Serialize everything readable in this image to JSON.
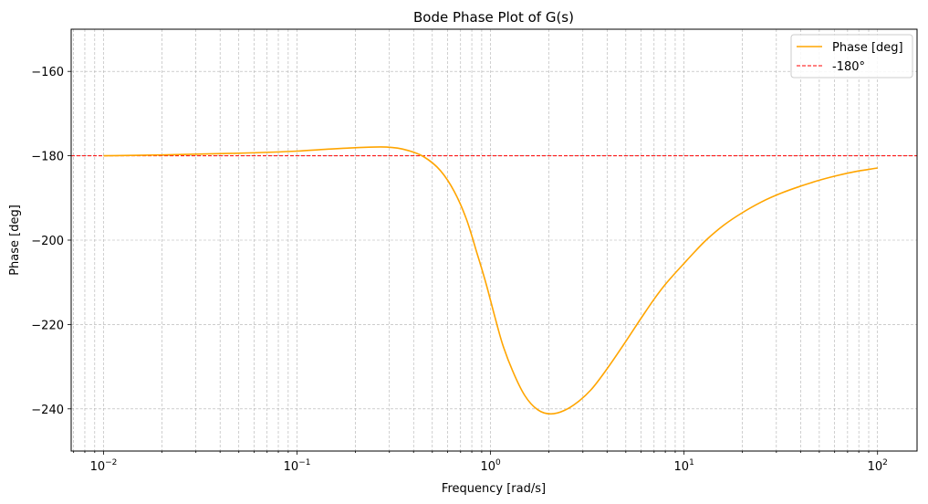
{
  "chart_data": {
    "type": "line",
    "title": "Bode Phase Plot of G(s)",
    "xlabel": "Frequency [rad/s]",
    "ylabel": "Phase [deg]",
    "xscale": "log",
    "xlim": [
      0.0068,
      160
    ],
    "ylim": [
      -250,
      -150
    ],
    "grid": true,
    "legend_position": "top-right",
    "x_ticks": [
      {
        "base": "10",
        "exp": "−2",
        "value": 0.01
      },
      {
        "base": "10",
        "exp": "−1",
        "value": 0.1
      },
      {
        "base": "10",
        "exp": "0",
        "value": 1
      },
      {
        "base": "10",
        "exp": "1",
        "value": 10
      },
      {
        "base": "10",
        "exp": "2",
        "value": 100
      }
    ],
    "y_ticks": [
      {
        "label": "−160",
        "value": -160
      },
      {
        "label": "−180",
        "value": -180
      },
      {
        "label": "−200",
        "value": -200
      },
      {
        "label": "−220",
        "value": -220
      },
      {
        "label": "−240",
        "value": -240
      }
    ],
    "series": [
      {
        "name": "Phase [deg]",
        "color": "#ffa500",
        "style": "solid",
        "x": [
          0.01,
          0.02,
          0.05,
          0.1,
          0.15,
          0.2,
          0.27,
          0.35,
          0.45,
          0.55,
          0.65,
          0.75,
          0.85,
          0.95,
          1.05,
          1.15,
          1.3,
          1.5,
          1.75,
          2.05,
          2.4,
          2.8,
          3.3,
          4.0,
          5.0,
          6.0,
          7.0,
          8.0,
          10,
          13,
          16,
          20,
          25,
          32,
          40,
          50,
          63,
          80,
          100
        ],
        "y": [
          -180.0,
          -179.8,
          -179.4,
          -178.9,
          -178.4,
          -178.1,
          -177.9,
          -178.4,
          -180.2,
          -183.5,
          -188.5,
          -195.0,
          -203.0,
          -210.5,
          -218.0,
          -224.5,
          -231.0,
          -236.8,
          -240.2,
          -241.2,
          -240.4,
          -238.5,
          -235.5,
          -230.5,
          -224.0,
          -218.5,
          -214.0,
          -210.5,
          -205.5,
          -200.0,
          -196.5,
          -193.5,
          -191.0,
          -188.8,
          -187.2,
          -185.8,
          -184.6,
          -183.6,
          -182.9
        ]
      },
      {
        "name": "-180°",
        "color": "#ff0000",
        "style": "dashed",
        "y_constant": -180
      }
    ]
  }
}
